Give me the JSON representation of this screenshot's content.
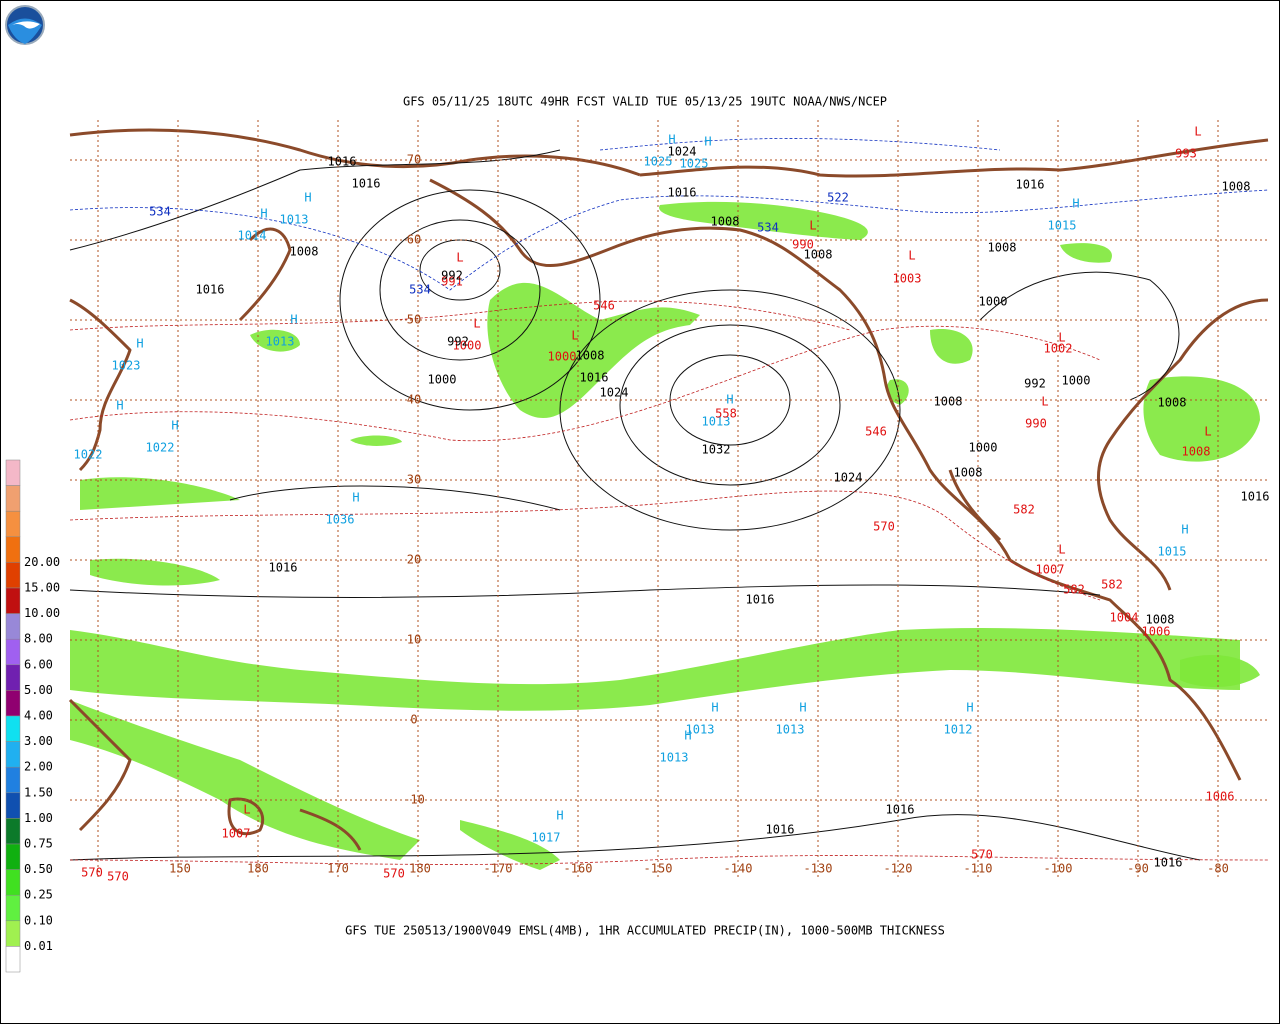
{
  "header": {
    "title": "GFS 05/11/25 18UTC 49HR FCST VALID TUE 05/13/25 19UTC NOAA/NWS/NCEP"
  },
  "footer": {
    "caption": "GFS TUE 250513/1900V049 EMSL(4MB), 1HR ACCUMULATED PRECIP(IN), 1000-500MB THICKNESS"
  },
  "legend": {
    "labels": [
      "20.00",
      "15.00",
      "10.00",
      "8.00",
      "6.00",
      "5.00",
      "4.00",
      "3.00",
      "2.00",
      "1.50",
      "1.00",
      "0.75",
      "0.50",
      "0.25",
      "0.10",
      "0.01"
    ],
    "colors": [
      "#f4b8c8",
      "#f0a070",
      "#f59040",
      "#f07010",
      "#e04000",
      "#c01010",
      "#9888d8",
      "#a060f0",
      "#7020b0",
      "#900070",
      "#10e0f0",
      "#20b0f0",
      "#2080e0",
      "#1050b0",
      "#0c7a2a",
      "#10b010",
      "#40e020",
      "#60f040",
      "#a0f050",
      "#ffffff"
    ]
  },
  "latitude_labels": [
    "70",
    "60",
    "50",
    "40",
    "30",
    "20",
    "10",
    "0",
    "-10"
  ],
  "longitude_labels": [
    "150",
    "180",
    "170",
    "180",
    "-170",
    "-160",
    "-150",
    "-140",
    "-130",
    "-120",
    "-110",
    "-100",
    "-90",
    "-80"
  ],
  "pressure_centers": [
    {
      "symbol": "H",
      "value": "1025",
      "color": "#10a0e0"
    },
    {
      "symbol": "H",
      "value": "1025",
      "color": "#10a0e0"
    },
    {
      "symbol": "H",
      "value": "1014",
      "color": "#10a0e0"
    },
    {
      "symbol": "H",
      "value": "1013",
      "color": "#10a0e0"
    },
    {
      "symbol": "H",
      "value": "1013",
      "color": "#10a0e0"
    },
    {
      "symbol": "H",
      "value": "1023",
      "color": "#10a0e0"
    },
    {
      "symbol": "H",
      "value": "1022",
      "color": "#10a0e0"
    },
    {
      "symbol": "H",
      "value": "1022",
      "color": "#10a0e0"
    },
    {
      "symbol": "H",
      "value": "1036",
      "color": "#10a0e0"
    },
    {
      "symbol": "H",
      "value": "1013",
      "color": "#10a0e0"
    },
    {
      "symbol": "H",
      "value": "1013",
      "color": "#10a0e0"
    },
    {
      "symbol": "H",
      "value": "1013",
      "color": "#10a0e0"
    },
    {
      "symbol": "H",
      "value": "1012",
      "color": "#10a0e0"
    },
    {
      "symbol": "H",
      "value": "1013",
      "color": "#10a0e0"
    },
    {
      "symbol": "H",
      "value": "1017",
      "color": "#10a0e0"
    },
    {
      "symbol": "H",
      "value": "1015",
      "color": "#10a0e0"
    },
    {
      "symbol": "H",
      "value": "1015",
      "color": "#10a0e0"
    },
    {
      "symbol": "L",
      "value": "993",
      "color": "#e01010"
    },
    {
      "symbol": "L",
      "value": "991",
      "color": "#e01010"
    },
    {
      "symbol": "L",
      "value": "1000",
      "color": "#e01010"
    },
    {
      "symbol": "L",
      "value": "1000",
      "color": "#e01010"
    },
    {
      "symbol": "L",
      "value": "1003",
      "color": "#e01010"
    },
    {
      "symbol": "L",
      "value": "990",
      "color": "#e01010"
    },
    {
      "symbol": "L",
      "value": "990",
      "color": "#e01010"
    },
    {
      "symbol": "L",
      "value": "1002",
      "color": "#e01010"
    },
    {
      "symbol": "L",
      "value": "1007",
      "color": "#e01010"
    },
    {
      "symbol": "L",
      "value": "1008",
      "color": "#e01010"
    },
    {
      "symbol": "L",
      "value": "1007",
      "color": "#e01010"
    }
  ],
  "contour_labels": [
    {
      "text": "1024",
      "color": "#000000"
    },
    {
      "text": "1016",
      "color": "#000000"
    },
    {
      "text": "1016",
      "color": "#000000"
    },
    {
      "text": "1016",
      "color": "#000000"
    },
    {
      "text": "1008",
      "color": "#000000"
    },
    {
      "text": "1016",
      "color": "#000000"
    },
    {
      "text": "992",
      "color": "#000000"
    },
    {
      "text": "992",
      "color": "#000000"
    },
    {
      "text": "1000",
      "color": "#000000"
    },
    {
      "text": "1016",
      "color": "#000000"
    },
    {
      "text": "1024",
      "color": "#000000"
    },
    {
      "text": "1008",
      "color": "#000000"
    },
    {
      "text": "1032",
      "color": "#000000"
    },
    {
      "text": "1024",
      "color": "#000000"
    },
    {
      "text": "1016",
      "color": "#000000"
    },
    {
      "text": "1016",
      "color": "#000000"
    },
    {
      "text": "1016",
      "color": "#000000"
    },
    {
      "text": "1008",
      "color": "#000000"
    },
    {
      "text": "1000",
      "color": "#000000"
    },
    {
      "text": "1008",
      "color": "#000000"
    },
    {
      "text": "1008",
      "color": "#000000"
    },
    {
      "text": "1000",
      "color": "#000000"
    },
    {
      "text": "992",
      "color": "#000000"
    },
    {
      "text": "1008",
      "color": "#000000"
    },
    {
      "text": "1000",
      "color": "#000000"
    },
    {
      "text": "1008",
      "color": "#000000"
    },
    {
      "text": "1016",
      "color": "#000000"
    },
    {
      "text": "1016",
      "color": "#000000"
    },
    {
      "text": "1016",
      "color": "#000000"
    },
    {
      "text": "1016",
      "color": "#000000"
    },
    {
      "text": "1008",
      "color": "#000000"
    },
    {
      "text": "1008",
      "color": "#000000"
    },
    {
      "text": "1008",
      "color": "#000000"
    },
    {
      "text": "546",
      "color": "#e01010"
    },
    {
      "text": "558",
      "color": "#e01010"
    },
    {
      "text": "570",
      "color": "#e01010"
    },
    {
      "text": "570",
      "color": "#e01010"
    },
    {
      "text": "570",
      "color": "#e01010"
    },
    {
      "text": "570",
      "color": "#e01010"
    },
    {
      "text": "570",
      "color": "#e01010"
    },
    {
      "text": "582",
      "color": "#e01010"
    },
    {
      "text": "582",
      "color": "#e01010"
    },
    {
      "text": "582",
      "color": "#e01010"
    },
    {
      "text": "546",
      "color": "#e01010"
    },
    {
      "text": "1004",
      "color": "#e01010"
    },
    {
      "text": "1006",
      "color": "#e01010"
    },
    {
      "text": "1006",
      "color": "#e01010"
    },
    {
      "text": "534",
      "color": "#1030c0"
    },
    {
      "text": "534",
      "color": "#1030c0"
    },
    {
      "text": "522",
      "color": "#1030c0"
    },
    {
      "text": "534",
      "color": "#1030c0"
    }
  ]
}
